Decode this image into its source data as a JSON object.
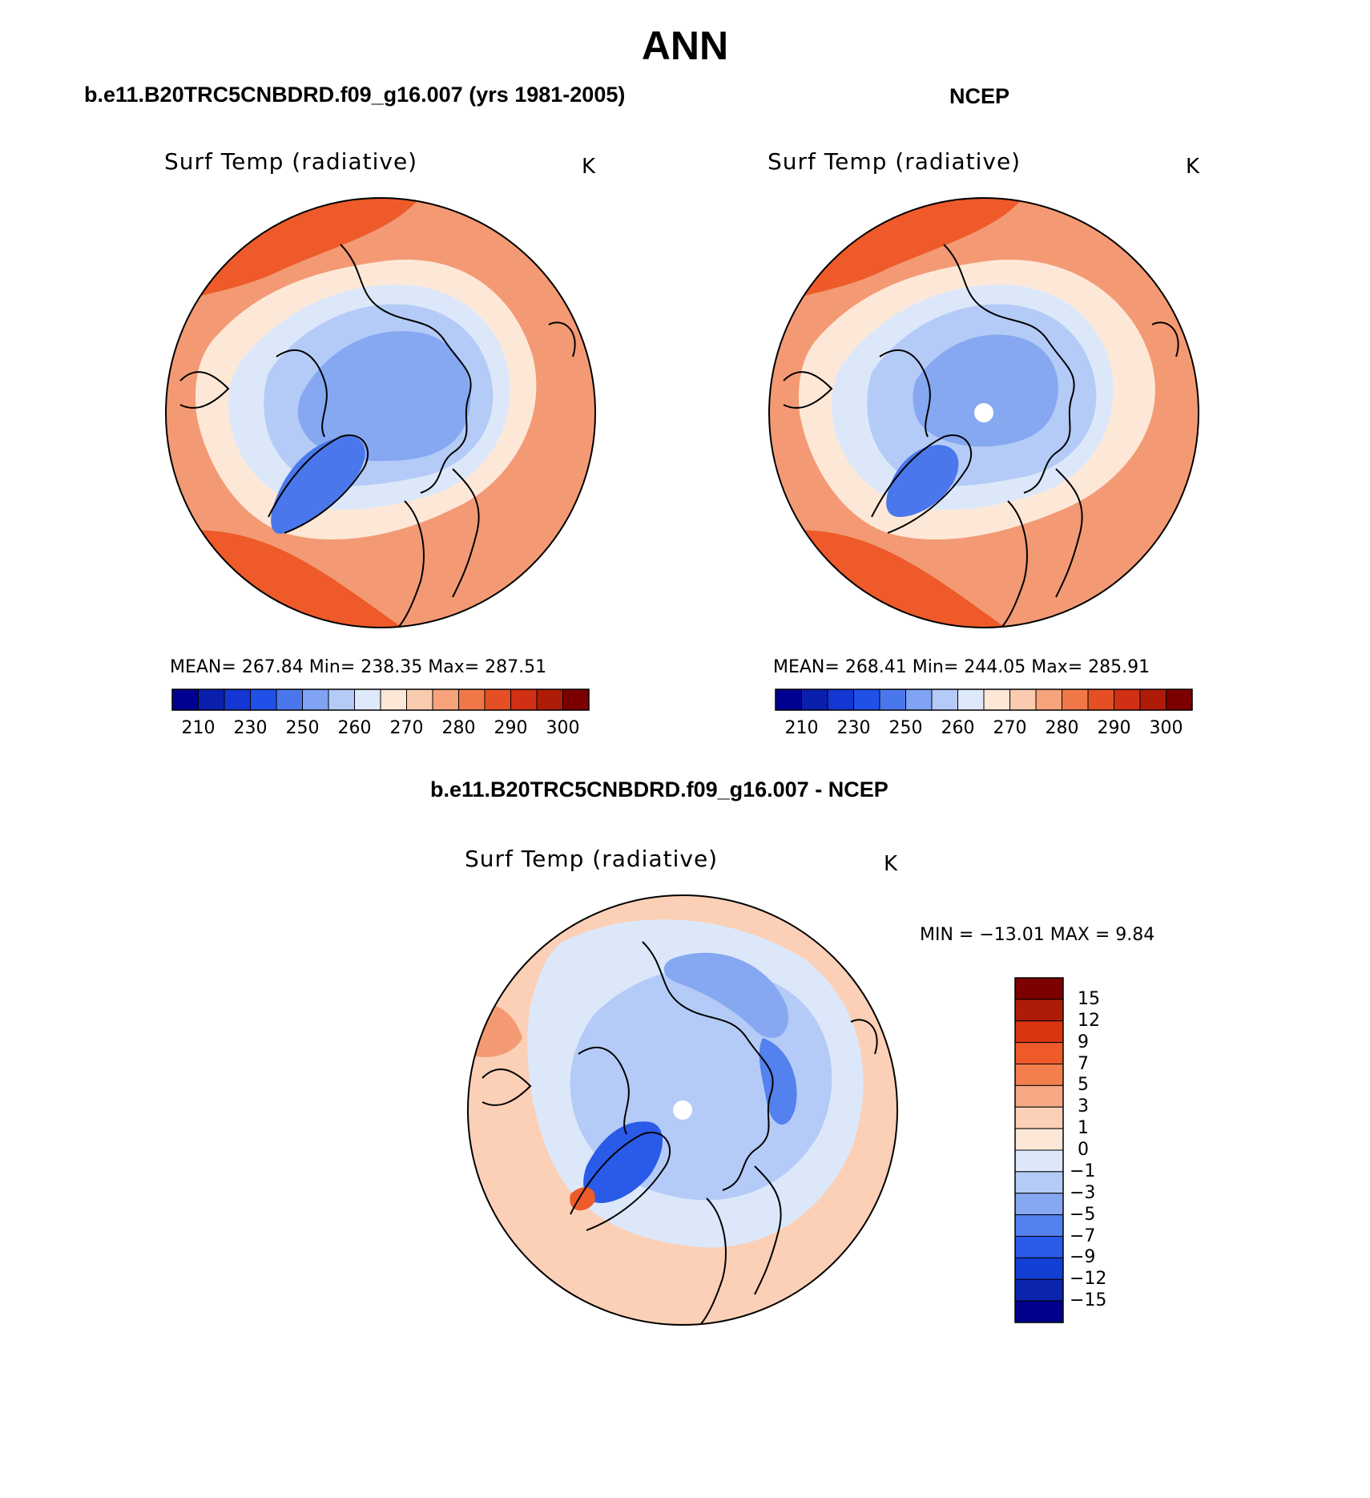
{
  "title": "ANN",
  "panels": [
    {
      "subtitle": "b.e11.B20TRC5CNBDRD.f09_g16.007 (yrs 1981-2005)",
      "variable": "Surf Temp (radiative)",
      "units": "K",
      "stats": "MEAN= 267.84   Min= 238.35   Max= 287.51"
    },
    {
      "subtitle": "NCEP",
      "variable": "Surf Temp (radiative)",
      "units": "K",
      "stats": "MEAN= 268.41   Min= 244.05   Max= 285.91"
    }
  ],
  "difference": {
    "subtitle": "b.e11.B20TRC5CNBDRD.f09_g16.007 - NCEP",
    "variable": "Surf Temp (radiative)",
    "units": "K",
    "stats": "MIN = −13.01  MAX =    9.84"
  },
  "colorbar_abs": {
    "colors": [
      "#000090",
      "#0a1fae",
      "#1436d2",
      "#2050e8",
      "#4a78ec",
      "#7fa2f2",
      "#b4caf7",
      "#dde9fb",
      "#fde8d8",
      "#fbcbb0",
      "#f6a27a",
      "#f07848",
      "#e44f24",
      "#d03014",
      "#ae1c08",
      "#7d0000"
    ],
    "labels": [
      "210",
      "230",
      "250",
      "260",
      "270",
      "280",
      "290",
      "300"
    ]
  },
  "colorbar_diff": {
    "colors": [
      "#7d0000",
      "#ae1c08",
      "#d83510",
      "#ee5a2a",
      "#f37f4f",
      "#f6a885",
      "#fbd0b6",
      "#fde8d8",
      "#dce8fa",
      "#b4cbf7",
      "#86a8f1",
      "#5381ed",
      "#2a5ae8",
      "#123fd4",
      "#0a24ae",
      "#00008c"
    ],
    "labels": [
      "15",
      "12",
      "9",
      "7",
      "5",
      "3",
      "1",
      "0",
      "−1",
      "−3",
      "−5",
      "−7",
      "−9",
      "−12",
      "−15"
    ]
  },
  "map_colors": {
    "warm_dark": "#ee5a2a",
    "warm_mid": "#f39a74",
    "warm_light": "#fbd0b6",
    "warm_pale": "#fde8d8",
    "cold_pale": "#dce8fa",
    "cold_light": "#b4cbf7",
    "cold_mid": "#86a8f1",
    "cold_deep": "#4a78ec"
  }
}
